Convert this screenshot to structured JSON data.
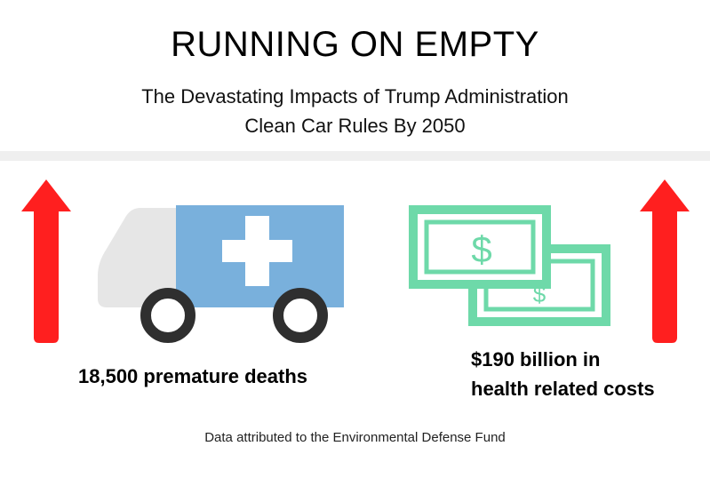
{
  "header": {
    "title": "RUNNING ON EMPTY",
    "subtitle_line1": "The Devastating Impacts of Trump Administration",
    "subtitle_line2": "Clean Car Rules By 2050"
  },
  "left_stat": {
    "caption": "18,500 premature deaths",
    "icon": "ambulance-icon",
    "trend_icon": "arrow-up-icon"
  },
  "right_stat": {
    "caption_line1": "$190 billion in",
    "caption_line2": "health related costs",
    "icon": "money-bills-icon",
    "bill_symbol": "$",
    "trend_icon": "arrow-up-icon"
  },
  "footer": {
    "source": "Data attributed to the Environmental Defense Fund"
  },
  "colors": {
    "arrow": "#ff1f1f",
    "ambulance_box": "#79b0dc",
    "ambulance_cab": "#e6e6e6",
    "wheel": "#2f2f2f",
    "money": "#6ed9a9"
  }
}
